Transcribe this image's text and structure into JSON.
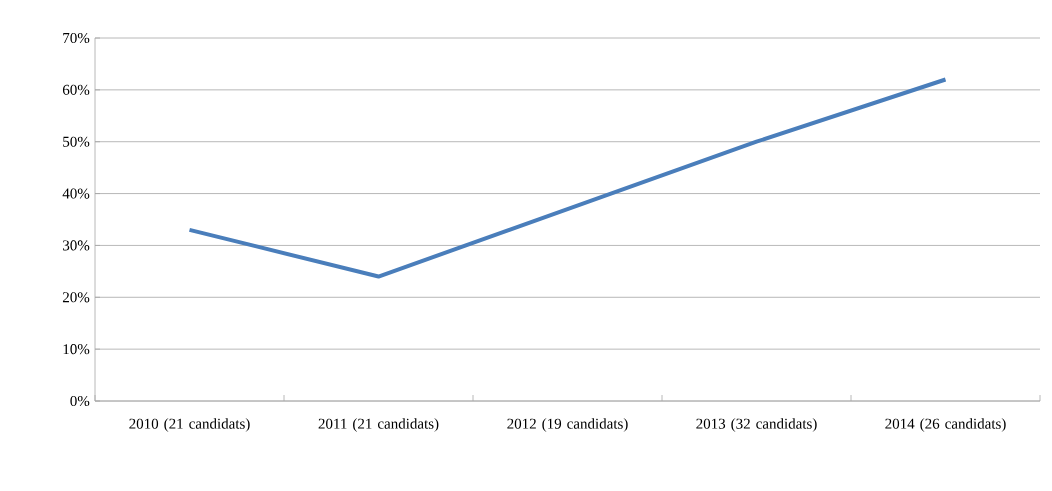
{
  "chart_data": {
    "type": "line",
    "categories": [
      "2010 (21 candidats)",
      "2011 (21 candidats)",
      "2012 (19 candidats)",
      "2013 (32 candidats)",
      "2014 (26 candidats)"
    ],
    "values": [
      33,
      24,
      37,
      50,
      62
    ],
    "color": "#4a7ebb",
    "ylim": [
      0,
      70
    ],
    "yticks": [
      {
        "value": 0,
        "label": "0%"
      },
      {
        "value": 10,
        "label": "10%"
      },
      {
        "value": 20,
        "label": "20%"
      },
      {
        "value": 30,
        "label": "30%"
      },
      {
        "value": 40,
        "label": "40%"
      },
      {
        "value": 50,
        "label": "50%"
      },
      {
        "value": 60,
        "label": "60%"
      },
      {
        "value": 70,
        "label": "70%"
      }
    ],
    "grid": "y",
    "marker": "none",
    "line_style": "solid"
  }
}
